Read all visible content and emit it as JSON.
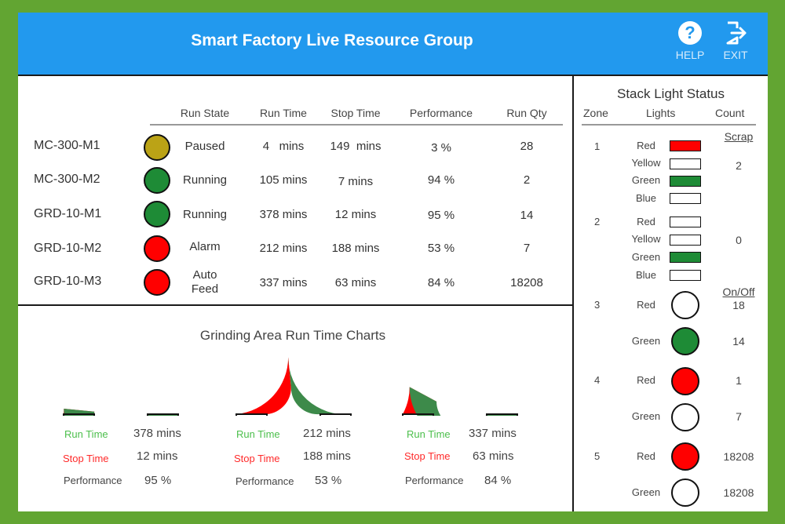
{
  "header": {
    "title": "Smart Factory Live Resource Group",
    "help_label": "HELP",
    "exit_label": "EXIT"
  },
  "colors": {
    "header_bg": "#2299ee",
    "running": "#1e8b36",
    "alarm": "#ff0000",
    "paused": "#bba316",
    "gauge_run": "#3d8a4a",
    "gauge_stop": "#ff0000",
    "run_label": "#4cbf4c",
    "stop_label": "#ff2a2a"
  },
  "machines": {
    "headers": [
      "Run State",
      "Run Time",
      "Stop Time",
      "Performance",
      "Run Qty"
    ],
    "rows": [
      {
        "name": "MC-300-M1",
        "status": "paused",
        "state_line1": "Paused",
        "state_line2": "",
        "run_time": "4   mins",
        "stop_time": "149  mins",
        "performance": "3 %",
        "qty": "28"
      },
      {
        "name": "MC-300-M2",
        "status": "running",
        "state_line1": "Running",
        "state_line2": "",
        "run_time": "105 mins",
        "stop_time": "7 mins",
        "performance": "94 %",
        "qty": "2"
      },
      {
        "name": "GRD-10-M1",
        "status": "running",
        "state_line1": "Running",
        "state_line2": "",
        "run_time": "378 mins",
        "stop_time": "12 mins",
        "performance": "95 %",
        "qty": "14"
      },
      {
        "name": "GRD-10-M2",
        "status": "alarm",
        "state_line1": "Alarm",
        "state_line2": "",
        "run_time": "212 mins",
        "stop_time": "188 mins",
        "performance": "53 %",
        "qty": "7"
      },
      {
        "name": "GRD-10-M3",
        "status": "alarm",
        "state_line1": "Auto",
        "state_line2": "Feed",
        "run_time": "337 mins",
        "stop_time": "63 mins",
        "performance": "84 %",
        "qty": "18208"
      }
    ]
  },
  "charts": {
    "title": "Grinding Area Run Time Charts",
    "run_label": "Run Time",
    "stop_label": "Stop Time",
    "perf_label": "Performance",
    "gauges": [
      {
        "run_minutes": 378,
        "stop_minutes": 12,
        "run_text": "378 mins",
        "stop_text": "12 mins",
        "perf_text": "95 %"
      },
      {
        "run_minutes": 212,
        "stop_minutes": 188,
        "run_text": "212 mins",
        "stop_text": "188 mins",
        "perf_text": "53 %"
      },
      {
        "run_minutes": 337,
        "stop_minutes": 63,
        "run_text": "337 mins",
        "stop_text": "63 mins",
        "perf_text": "84 %"
      }
    ]
  },
  "stack": {
    "title": "Stack Light Status",
    "headers": [
      "Zone",
      "Lights",
      "Count"
    ],
    "zones": [
      {
        "zone": "1",
        "count_header": "Scrap",
        "count": "2",
        "lights": [
          {
            "name": "Red",
            "on": true,
            "color": "#ff0000"
          },
          {
            "name": "Yellow",
            "on": false,
            "color": "#ffff00"
          },
          {
            "name": "Green",
            "on": true,
            "color": "#1e8b36"
          },
          {
            "name": "Blue",
            "on": false,
            "color": "#0000ff"
          }
        ]
      },
      {
        "zone": "2",
        "count": "0",
        "lights": [
          {
            "name": "Red",
            "on": false,
            "color": "#ff0000"
          },
          {
            "name": "Yellow",
            "on": false,
            "color": "#ffff00"
          },
          {
            "name": "Green",
            "on": true,
            "color": "#1e8b36"
          },
          {
            "name": "Blue",
            "on": false,
            "color": "#0000ff"
          }
        ]
      },
      {
        "zone": "3",
        "count_header": "On/Off",
        "lights": [
          {
            "name": "Red",
            "on": false,
            "color": "#ff0000",
            "count": "18"
          },
          {
            "name": "Green",
            "on": true,
            "color": "#1e8b36",
            "count": "14"
          }
        ]
      },
      {
        "zone": "4",
        "lights": [
          {
            "name": "Red",
            "on": true,
            "color": "#ff0000",
            "count": "1"
          },
          {
            "name": "Green",
            "on": false,
            "color": "#1e8b36",
            "count": "7"
          }
        ]
      },
      {
        "zone": "5",
        "lights": [
          {
            "name": "Red",
            "on": true,
            "color": "#ff0000",
            "count": "18208"
          },
          {
            "name": "Green",
            "on": false,
            "color": "#1e8b36",
            "count": "18208"
          }
        ]
      }
    ]
  }
}
